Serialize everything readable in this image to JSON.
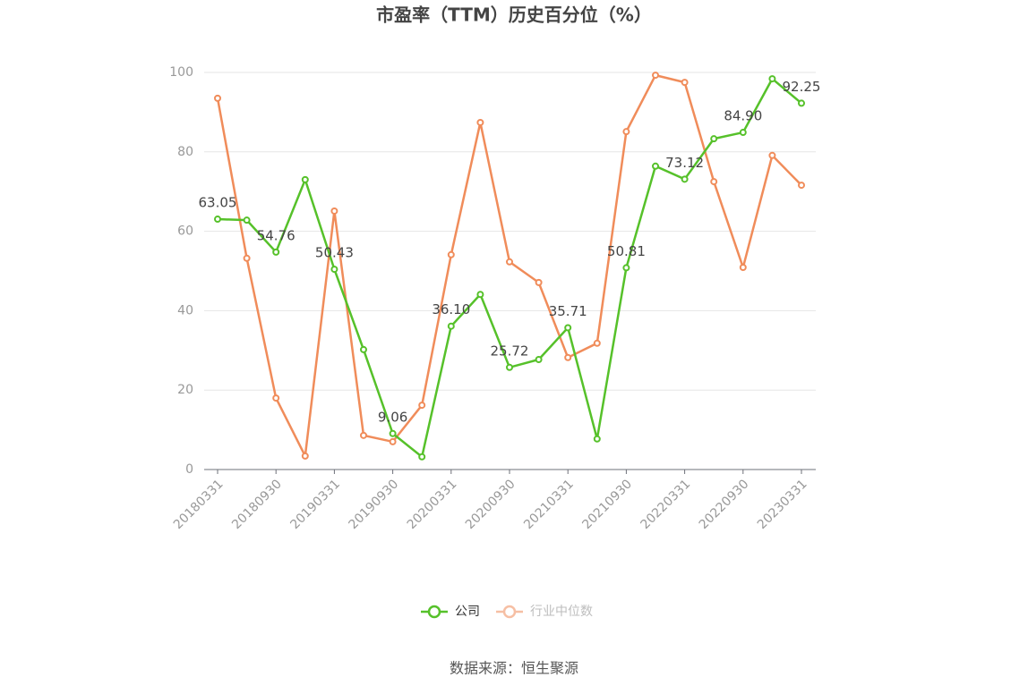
{
  "chart_data": {
    "type": "line",
    "title": "市盈率（TTM）历史百分位（%）",
    "categories": [
      "20180331",
      null,
      "20180930",
      null,
      "20190331",
      null,
      "20190930",
      null,
      "20200331",
      null,
      "20200930",
      null,
      "20210331",
      null,
      "20210930",
      null,
      "20220331",
      null,
      "20220930",
      null,
      "20230331"
    ],
    "series": [
      {
        "name": "公司",
        "color": "#56c12a",
        "values": [
          63.05,
          62.8,
          54.76,
          73.0,
          50.43,
          30.2,
          9.06,
          3.2,
          36.1,
          44.1,
          25.72,
          27.7,
          35.71,
          7.7,
          50.81,
          76.4,
          73.12,
          83.3,
          84.9,
          98.4,
          92.25
        ],
        "value_labels": [
          "63.05",
          null,
          "54.76",
          null,
          "50.43",
          null,
          "9.06",
          null,
          "36.10",
          null,
          "25.72",
          null,
          "35.71",
          null,
          "50.81",
          null,
          "73.12",
          null,
          "84.90",
          null,
          "92.25"
        ]
      },
      {
        "name": "行业中位数",
        "color": "#f08c5a",
        "values": [
          93.5,
          53.2,
          18.0,
          3.4,
          65.1,
          8.6,
          7.0,
          16.2,
          54.1,
          87.4,
          52.3,
          47.1,
          28.2,
          31.8,
          85.1,
          99.3,
          97.5,
          72.5,
          50.9,
          79.1,
          71.6
        ]
      }
    ],
    "ylim": [
      0,
      100
    ],
    "yticks": [
      0,
      20,
      40,
      60,
      80,
      100
    ],
    "grid": true,
    "legend": "bottom",
    "source": "数据来源：恒生聚源"
  }
}
